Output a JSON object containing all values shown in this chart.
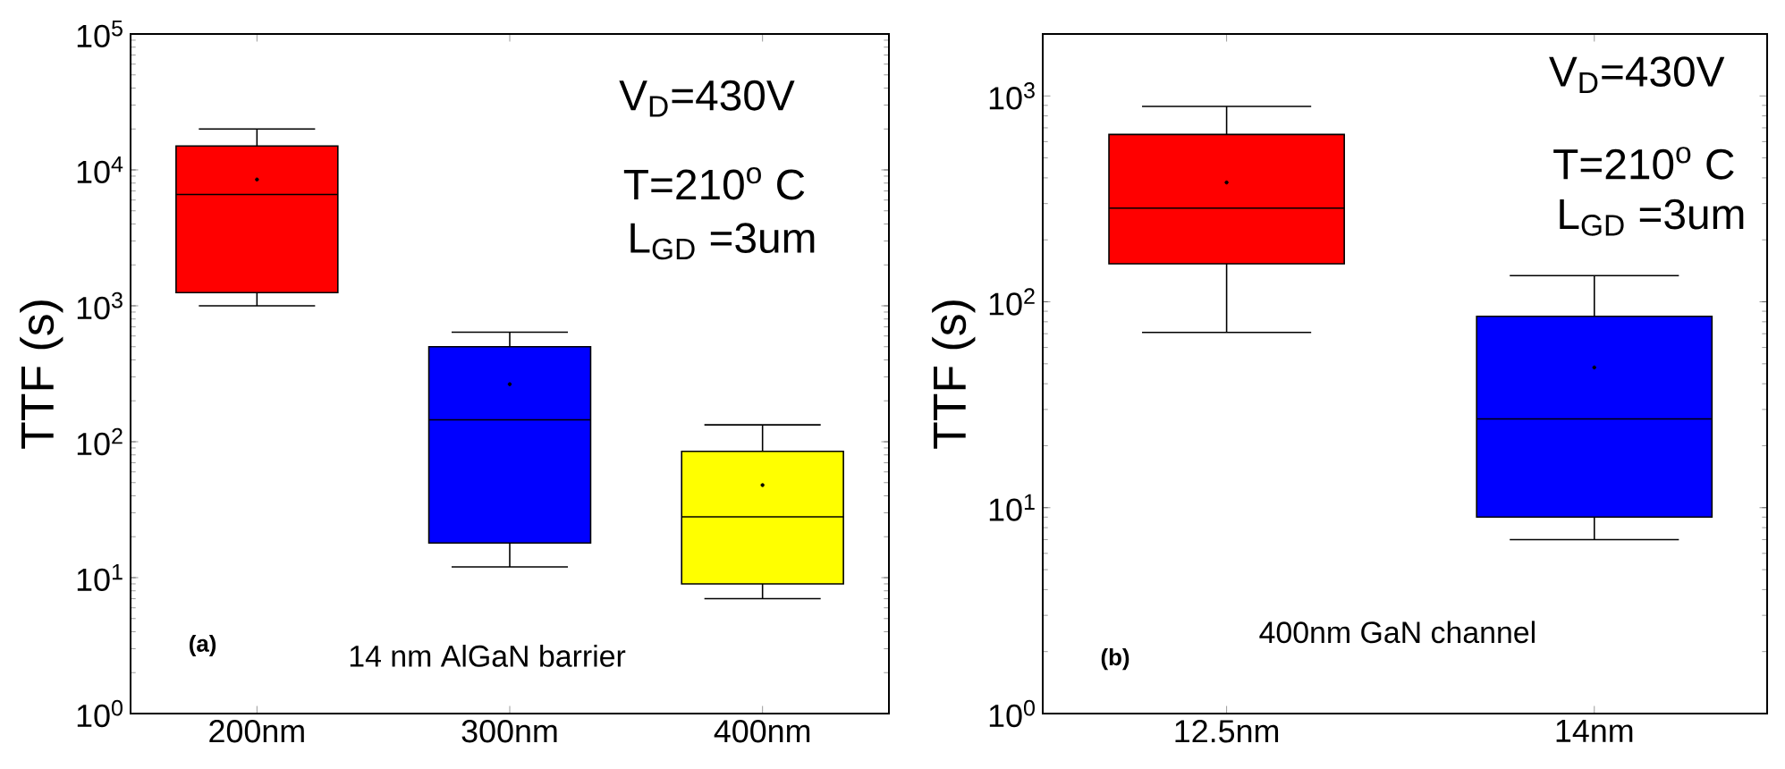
{
  "chart_data": [
    {
      "type": "box",
      "ylabel": "TTF (s)",
      "categories": [
        "200nm",
        "300nm",
        "400nm"
      ],
      "colors": [
        "#ff0000",
        "#0000ff",
        "#ffff00"
      ],
      "boxes": [
        {
          "low": 1000,
          "q1": 1250,
          "median": 6600,
          "q3": 15000,
          "high": 20000,
          "mean": 8500
        },
        {
          "low": 12,
          "q1": 18,
          "median": 145,
          "q3": 500,
          "high": 640,
          "mean": 265
        },
        {
          "low": 7,
          "q1": 9,
          "median": 28,
          "q3": 85,
          "high": 133,
          "mean": 48
        }
      ],
      "log": "y",
      "ylim": [
        1,
        100000
      ],
      "yticks": [
        {
          "value": 1,
          "label": "10$^{0}$"
        },
        {
          "value": 10,
          "label": "10$^{1}$"
        },
        {
          "value": 100,
          "label": "10$^{2}$"
        },
        {
          "value": 1000,
          "label": "10$^{3}$"
        },
        {
          "value": 10000,
          "label": "10$^{4}$"
        },
        {
          "value": 100000,
          "label": "10$^{5}$"
        }
      ],
      "annotations": [
        "V$_{D}$=430V",
        "T=210$^{o}$ C",
        "L$_{GD}$ =3um",
        "(a)",
        "14 nm AlGaN barrier"
      ]
    },
    {
      "type": "box",
      "ylabel": "TTF (s)",
      "categories": [
        "12.5nm",
        "14nm"
      ],
      "colors": [
        "#ff0000",
        "#0000ff"
      ],
      "boxes": [
        {
          "low": 71,
          "q1": 153,
          "median": 285,
          "q3": 650,
          "high": 890,
          "mean": 380
        },
        {
          "low": 7,
          "q1": 9,
          "median": 27,
          "q3": 85,
          "high": 134,
          "mean": 48
        }
      ],
      "log": "y",
      "ylim": [
        1,
        2000
      ],
      "yticks": [
        {
          "value": 1,
          "label": "10$^{0}$"
        },
        {
          "value": 10,
          "label": "10$^{1}$"
        },
        {
          "value": 100,
          "label": "10$^{2}$"
        },
        {
          "value": 1000,
          "label": "10$^{3}$"
        }
      ],
      "annotations": [
        "V$_{D}$=430V",
        "T=210$^{o}$ C",
        "L$_{GD}$ =3um",
        "(b)",
        "400nm GaN channel"
      ]
    }
  ]
}
